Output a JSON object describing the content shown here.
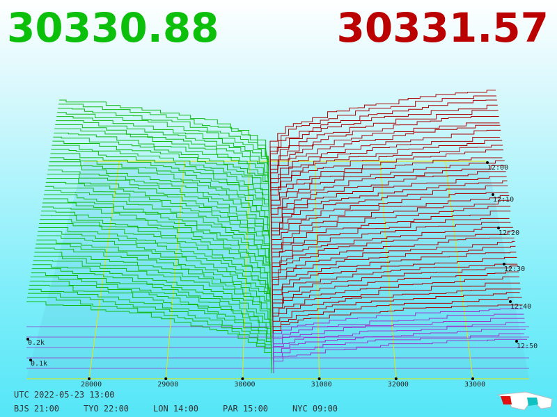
{
  "bid_price": 30330.88,
  "ask_price": 30331.57,
  "price_ticks": [
    28000,
    29000,
    30000,
    31000,
    32000,
    33000
  ],
  "depth_ticks": [
    "0.2k",
    "0.1k"
  ],
  "time_ticks": [
    "12:00",
    "12:10",
    "12:20",
    "12:30",
    "12:40",
    "12:50"
  ],
  "utc": "UTC 2022-05-23 13:00",
  "zones": [
    "BJS 21:00",
    "TYO 22:00",
    "LON 14:00",
    "PAR 15:00",
    "NYC 09:00"
  ]
}
